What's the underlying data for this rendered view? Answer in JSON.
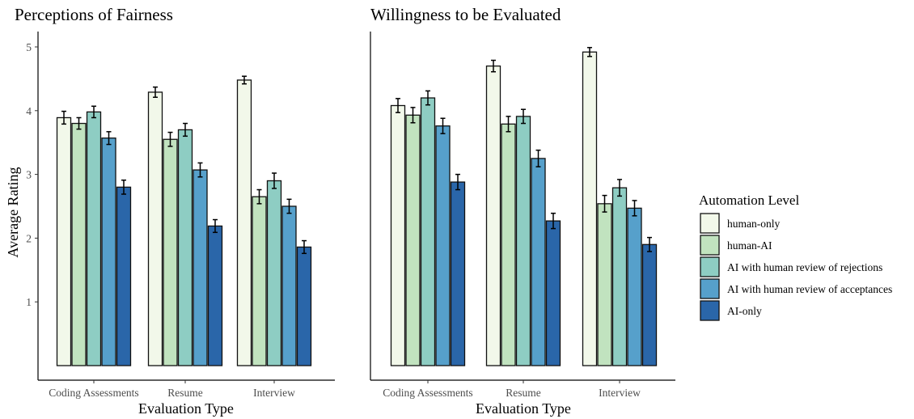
{
  "chart_data": [
    {
      "type": "bar",
      "title": "Perceptions of Fairness",
      "xlabel": "Evaluation Type",
      "ylabel": "Average Rating",
      "categories": [
        "Coding Assessments",
        "Resume",
        "Interview"
      ],
      "ylim": [
        0,
        5.2
      ],
      "yticks": [
        1,
        2,
        3,
        4,
        5
      ],
      "grid": false,
      "series": [
        {
          "name": "human-only",
          "values": [
            3.89,
            4.29,
            4.48
          ],
          "errors": [
            0.1,
            0.08,
            0.06
          ]
        },
        {
          "name": "human-AI",
          "values": [
            3.8,
            3.55,
            2.65
          ],
          "errors": [
            0.09,
            0.11,
            0.11
          ]
        },
        {
          "name": "AI with human review of rejections",
          "values": [
            3.98,
            3.7,
            2.9
          ],
          "errors": [
            0.09,
            0.1,
            0.12
          ]
        },
        {
          "name": "AI with human review of acceptances",
          "values": [
            3.57,
            3.07,
            2.5
          ],
          "errors": [
            0.1,
            0.11,
            0.11
          ]
        },
        {
          "name": "AI-only",
          "values": [
            2.8,
            2.19,
            1.86
          ],
          "errors": [
            0.11,
            0.1,
            0.1
          ]
        }
      ]
    },
    {
      "type": "bar",
      "title": "Willingness to be Evaluated",
      "xlabel": "Evaluation Type",
      "ylabel": "",
      "categories": [
        "Coding Assessments",
        "Resume",
        "Interview"
      ],
      "ylim": [
        0,
        5.2
      ],
      "yticks": [],
      "grid": false,
      "series": [
        {
          "name": "human-only",
          "values": [
            4.08,
            4.7,
            4.92
          ],
          "errors": [
            0.11,
            0.09,
            0.07
          ]
        },
        {
          "name": "human-AI",
          "values": [
            3.93,
            3.79,
            2.54
          ],
          "errors": [
            0.12,
            0.12,
            0.13
          ]
        },
        {
          "name": "AI with human review of rejections",
          "values": [
            4.2,
            3.91,
            2.79
          ],
          "errors": [
            0.11,
            0.11,
            0.13
          ]
        },
        {
          "name": "AI with human review of acceptances",
          "values": [
            3.76,
            3.25,
            2.47
          ],
          "errors": [
            0.12,
            0.13,
            0.12
          ]
        },
        {
          "name": "AI-only",
          "values": [
            2.88,
            2.27,
            1.9
          ],
          "errors": [
            0.12,
            0.12,
            0.11
          ]
        }
      ]
    }
  ],
  "legend": {
    "title": "Automation Level",
    "placement": "right",
    "items": [
      {
        "label": "human-only",
        "color": "#f2f8ea"
      },
      {
        "label": "human-AI",
        "color": "#c1e3bf"
      },
      {
        "label": "AI with human review of rejections",
        "color": "#8ecdc3"
      },
      {
        "label": "AI with human review of acceptances",
        "color": "#56a0cb"
      },
      {
        "label": "AI-only",
        "color": "#2a66a9"
      }
    ]
  }
}
